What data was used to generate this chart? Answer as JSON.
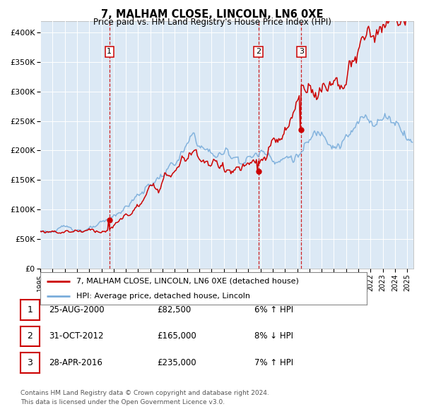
{
  "title": "7, MALHAM CLOSE, LINCOLN, LN6 0XE",
  "subtitle": "Price paid vs. HM Land Registry's House Price Index (HPI)",
  "ylim": [
    0,
    420000
  ],
  "yticks": [
    0,
    50000,
    100000,
    150000,
    200000,
    250000,
    300000,
    350000,
    400000
  ],
  "ytick_labels": [
    "£0",
    "£50K",
    "£100K",
    "£150K",
    "£200K",
    "£250K",
    "£300K",
    "£350K",
    "£400K"
  ],
  "background_color": "#dce9f5",
  "grid_color": "#ffffff",
  "purchases": [
    {
      "date_num": 2000.65,
      "price": 82500,
      "label": "1"
    },
    {
      "date_num": 2012.83,
      "price": 165000,
      "label": "2"
    },
    {
      "date_num": 2016.33,
      "price": 235000,
      "label": "3"
    }
  ],
  "vline_dates": [
    2000.65,
    2012.83,
    2016.33
  ],
  "legend_entries": [
    {
      "label": "7, MALHAM CLOSE, LINCOLN, LN6 0XE (detached house)",
      "color": "#cc0000"
    },
    {
      "label": "HPI: Average price, detached house, Lincoln",
      "color": "#7aaddb"
    }
  ],
  "table_rows": [
    {
      "num": "1",
      "date": "25-AUG-2000",
      "price": "£82,500",
      "hpi": "6% ↑ HPI"
    },
    {
      "num": "2",
      "date": "31-OCT-2012",
      "price": "£165,000",
      "hpi": "8% ↓ HPI"
    },
    {
      "num": "3",
      "date": "28-APR-2016",
      "price": "£235,000",
      "hpi": "7% ↑ HPI"
    }
  ],
  "footnote1": "Contains HM Land Registry data © Crown copyright and database right 2024.",
  "footnote2": "This data is licensed under the Open Government Licence v3.0.",
  "xmin": 1995.0,
  "xmax": 2025.5,
  "red_line_color": "#cc0000",
  "blue_line_color": "#7aaddb",
  "marker_color": "#cc0000"
}
